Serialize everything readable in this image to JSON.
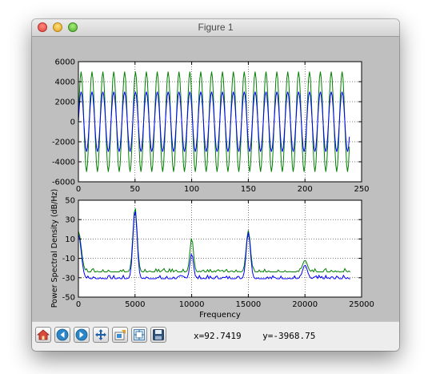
{
  "window": {
    "title": "Figure 1"
  },
  "toolbar": {
    "buttons": [
      {
        "name": "home-button",
        "icon": "home-icon"
      },
      {
        "name": "back-button",
        "icon": "arrow-left-icon"
      },
      {
        "name": "forward-button",
        "icon": "arrow-right-icon"
      },
      {
        "name": "pan-button",
        "icon": "move-icon"
      },
      {
        "name": "zoom-button",
        "icon": "zoom-rect-icon"
      },
      {
        "name": "subplots-button",
        "icon": "subplots-icon"
      },
      {
        "name": "save-button",
        "icon": "floppy-disk-icon"
      }
    ],
    "coords_text": "x=92.7419    y=-3968.75"
  },
  "colors": {
    "figure_bg": "#bfbfbf",
    "series1": "#0000ff",
    "series2": "#008000"
  },
  "chart_data": [
    {
      "type": "line",
      "title": "",
      "xlabel": "",
      "ylabel": "",
      "xlim": [
        0,
        250
      ],
      "ylim": [
        -6000,
        6000
      ],
      "xticks": [
        "0",
        "50",
        "100",
        "150",
        "200",
        "250"
      ],
      "yticks": [
        "-6000",
        "-4000",
        "-2000",
        "0",
        "2000",
        "4000",
        "6000"
      ],
      "grid": true,
      "legend": "none",
      "series": [
        {
          "color": "#0000ff",
          "signal": "sinusoid",
          "amplitude": 3000,
          "period": 9.6,
          "x_range": [
            0,
            240
          ]
        },
        {
          "color": "#008000",
          "signal": "sinusoid",
          "amplitude": 5000,
          "period": 9.6,
          "x_range": [
            0,
            240
          ]
        }
      ]
    },
    {
      "type": "line",
      "title": "",
      "xlabel": "Frequency",
      "ylabel": "Power Spectral Density (dB/Hz)",
      "xlim": [
        0,
        25000
      ],
      "ylim": [
        -50,
        50
      ],
      "xticks": [
        "0",
        "5000",
        "10000",
        "15000",
        "20000",
        "25000"
      ],
      "yticks": [
        "-50",
        "-30",
        "-10",
        "10",
        "30",
        "50"
      ],
      "grid": true,
      "legend": "none",
      "series": [
        {
          "color": "#0000ff",
          "baseline": -31,
          "peaks": [
            [
              0,
              15
            ],
            [
              5000,
              40
            ],
            [
              10000,
              -5
            ],
            [
              15000,
              17
            ],
            [
              20000,
              -17
            ],
            [
              24000,
              -38
            ]
          ]
        },
        {
          "color": "#008000",
          "baseline": -24,
          "peaks": [
            [
              0,
              18
            ],
            [
              5000,
              43
            ],
            [
              10000,
              11
            ],
            [
              15000,
              19
            ],
            [
              20000,
              -12
            ],
            [
              24000,
              -30
            ]
          ]
        }
      ]
    }
  ]
}
